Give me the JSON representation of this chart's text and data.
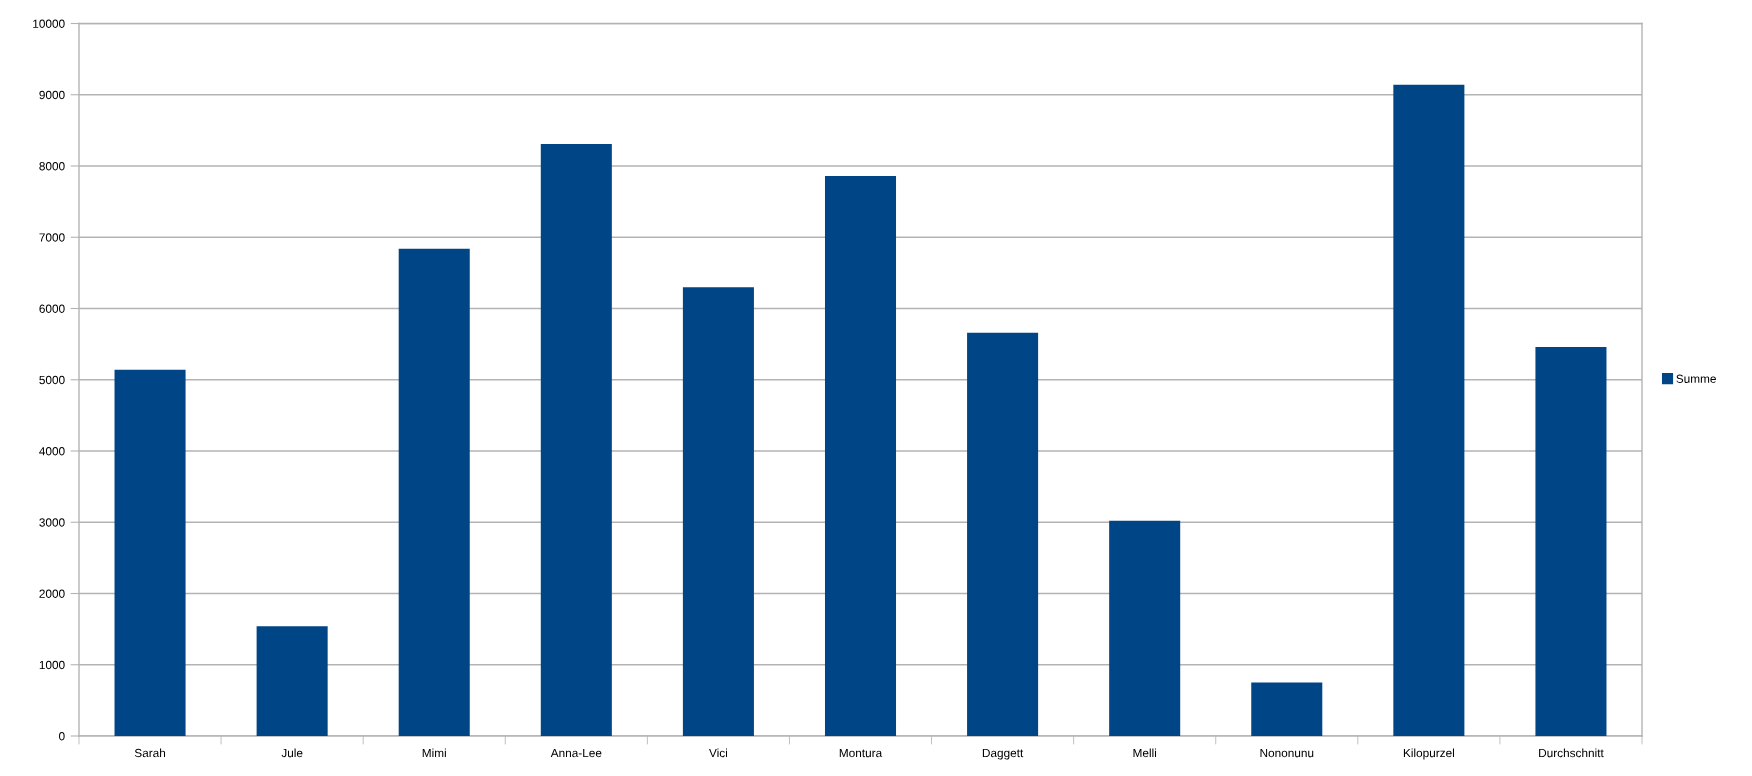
{
  "chart_data": {
    "type": "bar",
    "categories": [
      "Sarah",
      "Jule",
      "Mimi",
      "Anna-Lee",
      "Vici",
      "Montura",
      "Daggett",
      "Melli",
      "Nononunu",
      "Kilopurzel",
      "Durchschnitt"
    ],
    "series": [
      {
        "name": "Summe",
        "color": "#004586",
        "values": [
          5140,
          1540,
          6840,
          8310,
          6300,
          7860,
          5660,
          3020,
          750,
          9140,
          5460
        ]
      }
    ],
    "ylim": [
      0,
      10000
    ],
    "yticks": [
      0,
      1000,
      2000,
      3000,
      4000,
      5000,
      6000,
      7000,
      8000,
      9000,
      10000
    ],
    "grid": "y",
    "legend": "right"
  }
}
